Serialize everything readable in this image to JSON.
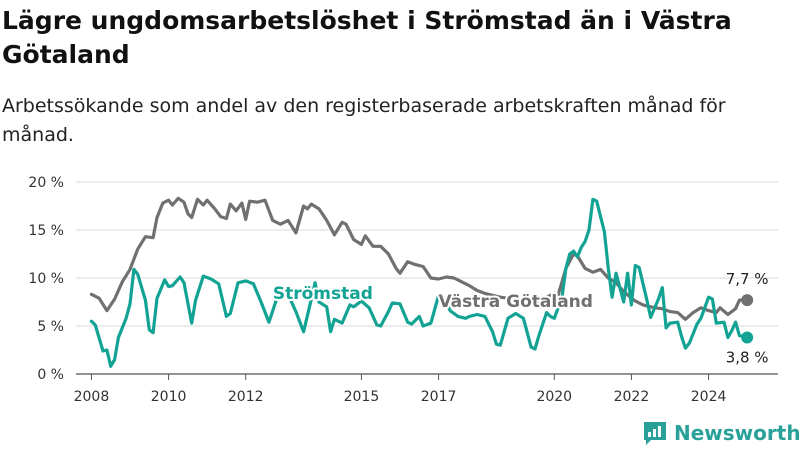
{
  "title": "Lägre ungdomsarbetslöshet i Strömstad än i Västra Götaland",
  "subtitle": "Arbetssökande som andel av den registerbaserade arbetskraften månad för månad.",
  "brand": {
    "name": "Newsworthy",
    "color": "#2aa198"
  },
  "chart_data": {
    "type": "line",
    "ylim": [
      0,
      20
    ],
    "xlim": [
      2007.6,
      2025.8
    ],
    "y_ticks": [
      0,
      5,
      10,
      15,
      20
    ],
    "y_tick_labels": [
      "0 %",
      "5 %",
      "10 %",
      "15 %",
      "20 %"
    ],
    "x_ticks": [
      2008,
      2010,
      2012,
      2015,
      2017,
      2020,
      2022,
      2024
    ],
    "x_tick_labels": [
      "2008",
      "2010",
      "2012",
      "2015",
      "2017",
      "2020",
      "2022",
      "2024"
    ],
    "grid": "horizontal",
    "xlabel": "",
    "ylabel": "",
    "series": [
      {
        "name": "Västra Götaland",
        "color": "#707070",
        "end_label": "7,7 %",
        "points": [
          [
            2008.0,
            8.3
          ],
          [
            2008.2,
            7.9
          ],
          [
            2008.4,
            6.6
          ],
          [
            2008.6,
            7.8
          ],
          [
            2008.8,
            9.6
          ],
          [
            2009.0,
            10.9
          ],
          [
            2009.2,
            13.0
          ],
          [
            2009.4,
            14.3
          ],
          [
            2009.6,
            14.2
          ],
          [
            2009.7,
            16.3
          ],
          [
            2009.85,
            17.8
          ],
          [
            2010.0,
            18.1
          ],
          [
            2010.1,
            17.6
          ],
          [
            2010.25,
            18.3
          ],
          [
            2010.4,
            17.9
          ],
          [
            2010.5,
            16.7
          ],
          [
            2010.6,
            16.3
          ],
          [
            2010.75,
            18.2
          ],
          [
            2010.9,
            17.6
          ],
          [
            2011.0,
            18.1
          ],
          [
            2011.2,
            17.2
          ],
          [
            2011.35,
            16.4
          ],
          [
            2011.5,
            16.2
          ],
          [
            2011.6,
            17.7
          ],
          [
            2011.75,
            17.0
          ],
          [
            2011.9,
            17.8
          ],
          [
            2012.0,
            16.1
          ],
          [
            2012.1,
            18.0
          ],
          [
            2012.3,
            17.9
          ],
          [
            2012.5,
            18.1
          ],
          [
            2012.7,
            16.0
          ],
          [
            2012.9,
            15.6
          ],
          [
            2013.1,
            16.0
          ],
          [
            2013.3,
            14.7
          ],
          [
            2013.5,
            17.5
          ],
          [
            2013.6,
            17.2
          ],
          [
            2013.7,
            17.7
          ],
          [
            2013.9,
            17.2
          ],
          [
            2014.1,
            16.0
          ],
          [
            2014.3,
            14.5
          ],
          [
            2014.5,
            15.8
          ],
          [
            2014.6,
            15.6
          ],
          [
            2014.8,
            14.0
          ],
          [
            2015.0,
            13.5
          ],
          [
            2015.1,
            14.4
          ],
          [
            2015.3,
            13.3
          ],
          [
            2015.5,
            13.3
          ],
          [
            2015.7,
            12.5
          ],
          [
            2015.9,
            11.0
          ],
          [
            2016.0,
            10.5
          ],
          [
            2016.2,
            11.7
          ],
          [
            2016.4,
            11.4
          ],
          [
            2016.6,
            11.2
          ],
          [
            2016.8,
            10.0
          ],
          [
            2017.0,
            9.9
          ],
          [
            2017.2,
            10.1
          ],
          [
            2017.4,
            10.0
          ],
          [
            2017.6,
            9.6
          ],
          [
            2017.8,
            9.2
          ],
          [
            2018.0,
            8.7
          ],
          [
            2018.2,
            8.4
          ],
          [
            2018.4,
            8.2
          ],
          [
            2018.6,
            8.0
          ],
          [
            2018.8,
            7.9
          ],
          [
            2019.0,
            7.9
          ],
          [
            2019.2,
            7.6
          ],
          [
            2019.4,
            7.3
          ],
          [
            2019.6,
            7.5
          ],
          [
            2019.8,
            8.0
          ],
          [
            2020.0,
            8.4
          ],
          [
            2020.1,
            8.2
          ],
          [
            2020.3,
            11.0
          ],
          [
            2020.5,
            12.5
          ],
          [
            2020.6,
            12.3
          ],
          [
            2020.8,
            11.0
          ],
          [
            2021.0,
            10.6
          ],
          [
            2021.2,
            10.9
          ],
          [
            2021.4,
            10.0
          ],
          [
            2021.6,
            9.5
          ],
          [
            2021.8,
            8.6
          ],
          [
            2022.0,
            7.9
          ],
          [
            2022.1,
            7.6
          ],
          [
            2022.3,
            7.2
          ],
          [
            2022.5,
            7.0
          ],
          [
            2022.6,
            6.9
          ],
          [
            2022.8,
            6.8
          ],
          [
            2023.0,
            6.5
          ],
          [
            2023.2,
            6.4
          ],
          [
            2023.4,
            5.7
          ],
          [
            2023.6,
            6.4
          ],
          [
            2023.8,
            6.9
          ],
          [
            2024.0,
            6.6
          ],
          [
            2024.2,
            6.4
          ],
          [
            2024.3,
            6.9
          ],
          [
            2024.5,
            6.2
          ],
          [
            2024.7,
            6.8
          ],
          [
            2024.8,
            7.7
          ],
          [
            2025.0,
            7.7
          ]
        ]
      },
      {
        "name": "Strömstad",
        "color": "#12a394",
        "end_label": "3,8 %",
        "points": [
          [
            2008.0,
            5.5
          ],
          [
            2008.1,
            5.1
          ],
          [
            2008.3,
            2.4
          ],
          [
            2008.4,
            2.5
          ],
          [
            2008.5,
            0.8
          ],
          [
            2008.6,
            1.5
          ],
          [
            2008.7,
            3.8
          ],
          [
            2008.9,
            5.8
          ],
          [
            2009.0,
            7.3
          ],
          [
            2009.1,
            10.9
          ],
          [
            2009.2,
            10.4
          ],
          [
            2009.4,
            7.7
          ],
          [
            2009.5,
            4.6
          ],
          [
            2009.6,
            4.3
          ],
          [
            2009.7,
            7.9
          ],
          [
            2009.9,
            9.8
          ],
          [
            2010.0,
            9.1
          ],
          [
            2010.1,
            9.2
          ],
          [
            2010.3,
            10.1
          ],
          [
            2010.4,
            9.5
          ],
          [
            2010.6,
            5.3
          ],
          [
            2010.7,
            7.7
          ],
          [
            2010.9,
            10.2
          ],
          [
            2011.1,
            9.9
          ],
          [
            2011.3,
            9.4
          ],
          [
            2011.5,
            6.0
          ],
          [
            2011.6,
            6.3
          ],
          [
            2011.8,
            9.5
          ],
          [
            2012.0,
            9.7
          ],
          [
            2012.2,
            9.4
          ],
          [
            2012.4,
            7.5
          ],
          [
            2012.6,
            5.4
          ],
          [
            2012.8,
            7.8
          ],
          [
            2013.0,
            8.8
          ],
          [
            2013.1,
            8.3
          ],
          [
            2013.3,
            6.5
          ],
          [
            2013.5,
            4.4
          ],
          [
            2013.7,
            7.8
          ],
          [
            2013.8,
            9.5
          ],
          [
            2013.9,
            7.5
          ],
          [
            2014.1,
            7.0
          ],
          [
            2014.2,
            4.4
          ],
          [
            2014.3,
            5.7
          ],
          [
            2014.5,
            5.3
          ],
          [
            2014.7,
            7.2
          ],
          [
            2014.8,
            7.0
          ],
          [
            2015.0,
            7.6
          ],
          [
            2015.2,
            6.9
          ],
          [
            2015.4,
            5.1
          ],
          [
            2015.5,
            5.0
          ],
          [
            2015.7,
            6.5
          ],
          [
            2015.8,
            7.4
          ],
          [
            2016.0,
            7.3
          ],
          [
            2016.2,
            5.4
          ],
          [
            2016.3,
            5.2
          ],
          [
            2016.5,
            6.0
          ],
          [
            2016.6,
            5.0
          ],
          [
            2016.8,
            5.3
          ],
          [
            2017.0,
            8.2
          ],
          [
            2017.1,
            8.2
          ],
          [
            2017.3,
            6.6
          ],
          [
            2017.5,
            6.0
          ],
          [
            2017.7,
            5.8
          ],
          [
            2017.8,
            6.0
          ],
          [
            2018.0,
            6.2
          ],
          [
            2018.2,
            6.0
          ],
          [
            2018.4,
            4.4
          ],
          [
            2018.5,
            3.1
          ],
          [
            2018.6,
            3.0
          ],
          [
            2018.8,
            5.8
          ],
          [
            2019.0,
            6.3
          ],
          [
            2019.2,
            5.8
          ],
          [
            2019.4,
            2.8
          ],
          [
            2019.5,
            2.6
          ],
          [
            2019.6,
            4.0
          ],
          [
            2019.8,
            6.4
          ],
          [
            2019.9,
            6.0
          ],
          [
            2020.0,
            5.8
          ],
          [
            2020.2,
            8.0
          ],
          [
            2020.3,
            11.0
          ],
          [
            2020.4,
            12.5
          ],
          [
            2020.5,
            12.8
          ],
          [
            2020.6,
            12.2
          ],
          [
            2020.7,
            13.2
          ],
          [
            2020.8,
            13.8
          ],
          [
            2020.9,
            15.0
          ],
          [
            2021.0,
            18.2
          ],
          [
            2021.1,
            18.0
          ],
          [
            2021.3,
            14.8
          ],
          [
            2021.4,
            11.0
          ],
          [
            2021.5,
            8.0
          ],
          [
            2021.6,
            10.5
          ],
          [
            2021.8,
            7.5
          ],
          [
            2021.9,
            10.5
          ],
          [
            2022.0,
            7.2
          ],
          [
            2022.1,
            11.3
          ],
          [
            2022.2,
            11.1
          ],
          [
            2022.4,
            7.7
          ],
          [
            2022.5,
            5.9
          ],
          [
            2022.7,
            7.8
          ],
          [
            2022.8,
            9.0
          ],
          [
            2022.9,
            4.8
          ],
          [
            2023.0,
            5.3
          ],
          [
            2023.2,
            5.4
          ],
          [
            2023.3,
            3.9
          ],
          [
            2023.4,
            2.7
          ],
          [
            2023.5,
            3.2
          ],
          [
            2023.7,
            5.2
          ],
          [
            2023.8,
            5.8
          ],
          [
            2024.0,
            8.0
          ],
          [
            2024.1,
            7.8
          ],
          [
            2024.2,
            5.3
          ],
          [
            2024.4,
            5.4
          ],
          [
            2024.5,
            3.8
          ],
          [
            2024.6,
            4.5
          ],
          [
            2024.7,
            5.4
          ],
          [
            2024.8,
            4.0
          ],
          [
            2025.0,
            3.8
          ]
        ]
      }
    ]
  }
}
